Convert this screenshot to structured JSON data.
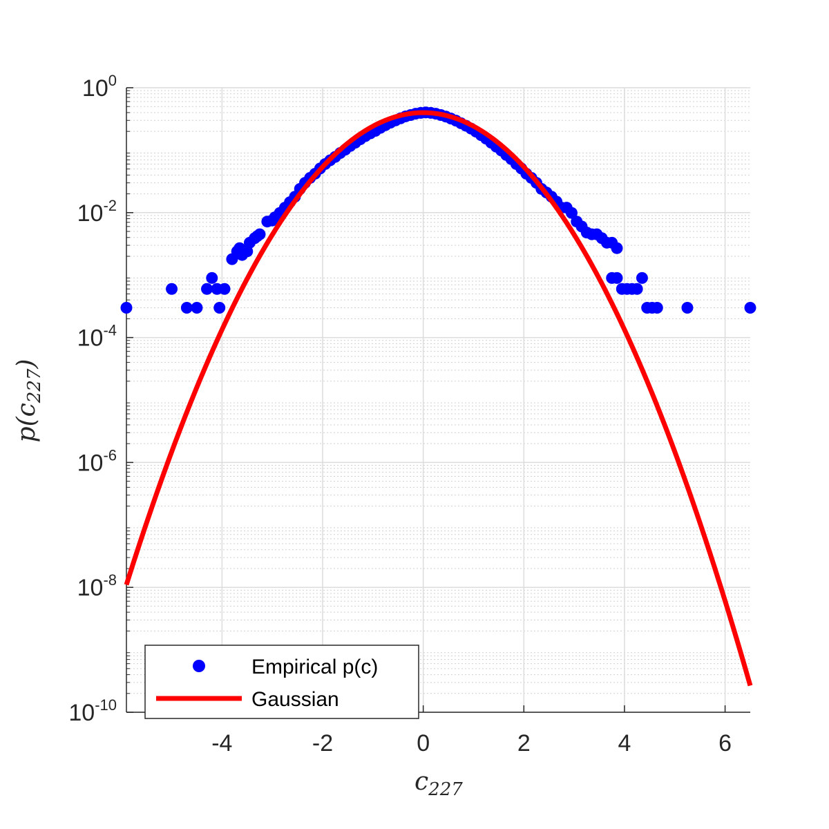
{
  "chart_data": {
    "type": "scatter",
    "xlabel": "c",
    "xlabel_sub": "227",
    "ylabel": "p(c",
    "ylabel_sub": "227",
    "ylabel_close": ")",
    "xlim": [
      -5.9,
      6.5
    ],
    "ylim_log10": [
      -10,
      0
    ],
    "y_scale": "log",
    "grid": true,
    "minor_grid": true,
    "legend_position": "bottom-left",
    "x_ticks": [
      {
        "value": -4,
        "label": "-4"
      },
      {
        "value": -2,
        "label": "-2"
      },
      {
        "value": 0,
        "label": "0"
      },
      {
        "value": 2,
        "label": "2"
      },
      {
        "value": 4,
        "label": "4"
      },
      {
        "value": 6,
        "label": "6"
      }
    ],
    "y_ticks": [
      {
        "exp": 0,
        "base": "10",
        "sup": "0"
      },
      {
        "exp": -2,
        "base": "10",
        "sup": "-2"
      },
      {
        "exp": -4,
        "base": "10",
        "sup": "-4"
      },
      {
        "exp": -6,
        "base": "10",
        "sup": "-6"
      },
      {
        "exp": -8,
        "base": "10",
        "sup": "-8"
      },
      {
        "exp": -10,
        "base": "10",
        "sup": "-10"
      }
    ],
    "series": [
      {
        "name": "Empirical p(c)",
        "kind": "scatter",
        "color": "#0000ff",
        "points": [
          [
            -5.9,
            0.0003
          ],
          [
            -5.0,
            0.0006
          ],
          [
            -4.7,
            0.0003
          ],
          [
            -4.5,
            0.0003
          ],
          [
            -4.3,
            0.0006
          ],
          [
            -4.2,
            0.0009
          ],
          [
            -4.1,
            0.0006
          ],
          [
            -4.05,
            0.0003
          ],
          [
            -3.95,
            0.0006
          ],
          [
            -3.8,
            0.0018
          ],
          [
            -3.7,
            0.0024
          ],
          [
            -3.65,
            0.0027
          ],
          [
            -3.6,
            0.0021
          ],
          [
            -3.5,
            0.0024
          ],
          [
            -3.45,
            0.0033
          ],
          [
            -3.35,
            0.0039
          ],
          [
            -3.3,
            0.0042
          ],
          [
            -3.25,
            0.0045
          ],
          [
            -3.1,
            0.0072
          ],
          [
            -3.0,
            0.0075
          ],
          [
            -2.95,
            0.0084
          ],
          [
            -2.85,
            0.0099
          ],
          [
            -2.75,
            0.012
          ],
          [
            -2.65,
            0.0147
          ],
          [
            -2.55,
            0.018
          ],
          [
            -2.45,
            0.024
          ],
          [
            -2.35,
            0.03
          ],
          [
            -2.25,
            0.036
          ],
          [
            -2.15,
            0.042
          ],
          [
            -2.05,
            0.051
          ],
          [
            -1.95,
            0.06
          ],
          [
            -1.85,
            0.069
          ],
          [
            -1.75,
            0.078
          ],
          [
            -1.65,
            0.09
          ],
          [
            -1.55,
            0.102
          ],
          [
            -1.45,
            0.117
          ],
          [
            -1.35,
            0.132
          ],
          [
            -1.25,
            0.15
          ],
          [
            -1.15,
            0.168
          ],
          [
            -1.05,
            0.186
          ],
          [
            -0.95,
            0.204
          ],
          [
            -0.85,
            0.228
          ],
          [
            -0.75,
            0.252
          ],
          [
            -0.65,
            0.276
          ],
          [
            -0.55,
            0.3
          ],
          [
            -0.45,
            0.324
          ],
          [
            -0.35,
            0.348
          ],
          [
            -0.25,
            0.366
          ],
          [
            -0.15,
            0.384
          ],
          [
            -0.05,
            0.396
          ],
          [
            0.05,
            0.402
          ],
          [
            0.15,
            0.396
          ],
          [
            0.25,
            0.384
          ],
          [
            0.35,
            0.366
          ],
          [
            0.45,
            0.345
          ],
          [
            0.55,
            0.321
          ],
          [
            0.65,
            0.297
          ],
          [
            0.75,
            0.27
          ],
          [
            0.85,
            0.246
          ],
          [
            0.95,
            0.222
          ],
          [
            1.05,
            0.198
          ],
          [
            1.15,
            0.174
          ],
          [
            1.25,
            0.153
          ],
          [
            1.35,
            0.132
          ],
          [
            1.45,
            0.114
          ],
          [
            1.55,
            0.099
          ],
          [
            1.65,
            0.084
          ],
          [
            1.75,
            0.072
          ],
          [
            1.85,
            0.06
          ],
          [
            1.95,
            0.051
          ],
          [
            2.05,
            0.042
          ],
          [
            2.15,
            0.036
          ],
          [
            2.25,
            0.03
          ],
          [
            2.35,
            0.024
          ],
          [
            2.45,
            0.021
          ],
          [
            2.55,
            0.018
          ],
          [
            2.65,
            0.015
          ],
          [
            2.75,
            0.012
          ],
          [
            2.85,
            0.012
          ],
          [
            2.95,
            0.0099
          ],
          [
            3.05,
            0.0072
          ],
          [
            3.15,
            0.006
          ],
          [
            3.25,
            0.0048
          ],
          [
            3.35,
            0.0045
          ],
          [
            3.45,
            0.0045
          ],
          [
            3.55,
            0.0039
          ],
          [
            3.65,
            0.0033
          ],
          [
            3.75,
            0.0033
          ],
          [
            3.85,
            0.0027
          ],
          [
            3.75,
            0.0009
          ],
          [
            3.85,
            0.0009
          ],
          [
            3.95,
            0.0006
          ],
          [
            4.05,
            0.0006
          ],
          [
            4.15,
            0.0006
          ],
          [
            4.25,
            0.0006
          ],
          [
            4.35,
            0.0009
          ],
          [
            4.45,
            0.0003
          ],
          [
            4.55,
            0.0003
          ],
          [
            4.65,
            0.0003
          ],
          [
            5.25,
            0.0003
          ],
          [
            6.5,
            0.0003
          ]
        ]
      },
      {
        "name": "Gaussian",
        "kind": "line",
        "color": "#ff0000",
        "mean": 0.0,
        "std": 1.0,
        "x_range": [
          -5.9,
          6.5
        ]
      }
    ]
  }
}
